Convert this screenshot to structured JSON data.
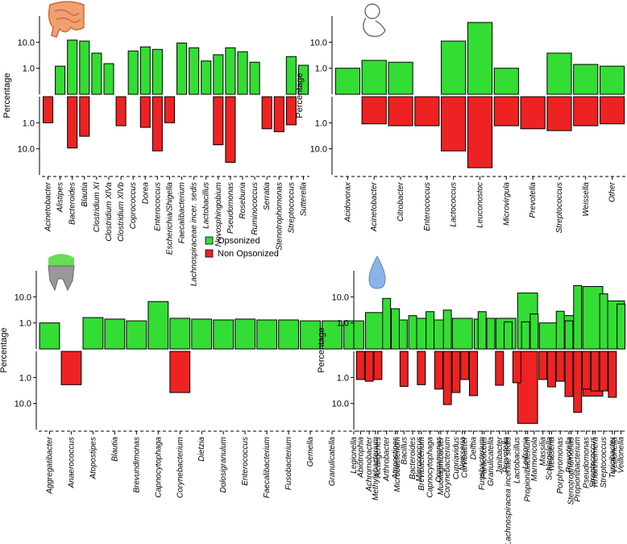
{
  "chart_data": [
    {
      "type": "bar",
      "log": true,
      "mirrored": true,
      "y_label": "Percentage",
      "ylim": [
        0.1,
        100
      ],
      "yticks": [
        {
          "value": 1,
          "label": "1.0"
        },
        {
          "value": 10,
          "label": "10.0"
        }
      ],
      "categories": [
        "Acinetobacter",
        "Alistipes",
        "Bacteroides",
        "Blautia",
        "Clostridium XI",
        "Clostridium XlVa",
        "Clostridium XlVb",
        "Coprococcus",
        "Dorea",
        "Enterococcus",
        "Escherichia/Shigella",
        "Faecalibacterium",
        "Lachnospiraceae incer. sedis",
        "Lactobacillus",
        "Novosphingobium",
        "Pseudomonas",
        "Roseburia",
        "Ruminococcus",
        "Serratia",
        "Stenotrophomonas",
        "Streptococcus",
        "Sutterella"
      ],
      "series": [
        {
          "name": "Opsonized",
          "color": "#33dd33",
          "values": [
            null,
            1.2,
            12,
            11,
            3.8,
            1.5,
            null,
            4.6,
            6.6,
            5.3,
            null,
            9.3,
            6.1,
            1.9,
            3.3,
            6.1,
            4.3,
            1.7,
            null,
            null,
            2.8,
            1.3
          ]
        },
        {
          "name": "Non Opsonized",
          "color": "#ee2222",
          "values": [
            1.0,
            null,
            9.3,
            3.3,
            null,
            null,
            1.3,
            null,
            1.5,
            12,
            1.0,
            null,
            null,
            null,
            7.0,
            33,
            null,
            null,
            1.7,
            2.2,
            1.2,
            null
          ]
        }
      ]
    },
    {
      "type": "bar",
      "log": true,
      "mirrored": true,
      "y_label": "Percentage",
      "ylim": [
        0.1,
        100
      ],
      "yticks": [
        {
          "value": 1,
          "label": "1.0"
        },
        {
          "value": 10,
          "label": "10.0"
        }
      ],
      "categories": [
        "Acidovorax",
        "Acinetobacter",
        "Citrobacter",
        "Enterococcus",
        "Lactococcus",
        "Leuconostoc",
        "Microvirgula",
        "Prevotella",
        "Streptococcus",
        "Weissella",
        "Other"
      ],
      "series": [
        {
          "name": "Opsonized",
          "color": "#33dd33",
          "values": [
            1.0,
            2.0,
            1.7,
            null,
            11,
            57,
            1.0,
            null,
            3.8,
            1.4,
            1.2
          ]
        },
        {
          "name": "Non Opsonized",
          "color": "#ee2222",
          "values": [
            null,
            1.1,
            1.3,
            1.3,
            12,
            53,
            1.3,
            1.7,
            2.0,
            1.3,
            1.1
          ]
        }
      ]
    },
    {
      "type": "bar",
      "log": true,
      "mirrored": true,
      "y_label": "Percentage",
      "ylim": [
        0.1,
        100
      ],
      "yticks": [
        {
          "value": 1,
          "label": "1.0"
        },
        {
          "value": 10,
          "label": "10.0"
        }
      ],
      "categories": [
        "Aggregatibacter",
        "Anaerococcus",
        "Atopostipes",
        "Blautia",
        "Brevundimonas",
        "Capnocytophaga",
        "Corynebacterium",
        "Dietzia",
        "Dolosigranulum",
        "Enterococcus",
        "Faecalibacterium",
        "Fusobacterium",
        "Gemella",
        "Granulicatella",
        "Legionella",
        "Methylobacterium",
        "Microbacterium",
        "Micrococcus",
        "Mucilaginibacter",
        "Neisseria",
        "Paracoccus",
        "Prevotella",
        "Propionibacterium",
        "Schlegelella",
        "Stenotrophomonas",
        "Streptococcus",
        "Veillonella"
      ],
      "series": [
        {
          "name": "Opsonized",
          "color": "#33dd33",
          "values": [
            1.0,
            null,
            1.6,
            1.4,
            1.2,
            6.6,
            1.5,
            1.4,
            1.3,
            1.4,
            1.3,
            1.3,
            1.2,
            1.2,
            1.2,
            2.5,
            1.3,
            1.5,
            1.3,
            1.5,
            1.4,
            1.5,
            14,
            1.0,
            1.9,
            25,
            7.0
          ]
        },
        {
          "name": "Non Opsonized",
          "color": "#ee2222",
          "values": [
            null,
            1.9,
            null,
            null,
            null,
            null,
            3.8,
            null,
            null,
            null,
            null,
            null,
            null,
            null,
            null,
            null,
            null,
            null,
            null,
            null,
            null,
            null,
            58,
            null,
            null,
            5.2,
            null
          ]
        }
      ]
    },
    {
      "type": "bar",
      "log": true,
      "mirrored": true,
      "y_label": "Percentage",
      "ylim": [
        0.1,
        100
      ],
      "yticks": [
        {
          "value": 1,
          "label": "1.0"
        },
        {
          "value": 10,
          "label": "10.0"
        }
      ],
      "categories": [
        "Abiotrophia",
        "Achromobacter",
        "Alcaligenes",
        "Arthrobacter",
        "Atopostipes",
        "Bacillus",
        "Bacteroides",
        "Brevibacterium",
        "Capnocytophaga",
        "Comamonas",
        "Corynebacterium",
        "Cupriavidus",
        "Curvibacter",
        "Delftia",
        "Fusobacterium",
        "Granulicatella",
        "Janibacter",
        "Lachnospiracea incertae sedis",
        "Lactobacillus",
        "Leifsonia",
        "Marmoricola",
        "Massilia",
        "Neisseria",
        "Porphyromonas",
        "Prevotella",
        "Propionibacterium",
        "Pseudomonas",
        "Rheinheimera",
        "Streptococcus",
        "Turicibacter",
        "Veillonella"
      ],
      "series": [
        {
          "name": "Opsonized",
          "color": "#33dd33",
          "values": [
            null,
            null,
            null,
            8.7,
            3.5,
            null,
            1.9,
            null,
            2.7,
            null,
            3.1,
            null,
            null,
            null,
            2.7,
            1.5,
            null,
            1.1,
            null,
            1.1,
            2.2,
            null,
            null,
            2.8,
            1.2,
            27,
            null,
            null,
            13,
            null,
            5.3
          ]
        },
        {
          "name": "Non Opsonized",
          "color": "#ee2222",
          "values": [
            1.2,
            1.4,
            1.2,
            null,
            null,
            2.2,
            null,
            1.9,
            null,
            2.8,
            11,
            3.8,
            1.2,
            5.0,
            null,
            null,
            2.0,
            null,
            1.6,
            null,
            null,
            1.2,
            2.3,
            1.4,
            5.4,
            22,
            2.8,
            3.3,
            3.3,
            5.8,
            null
          ]
        }
      ]
    }
  ]
}
